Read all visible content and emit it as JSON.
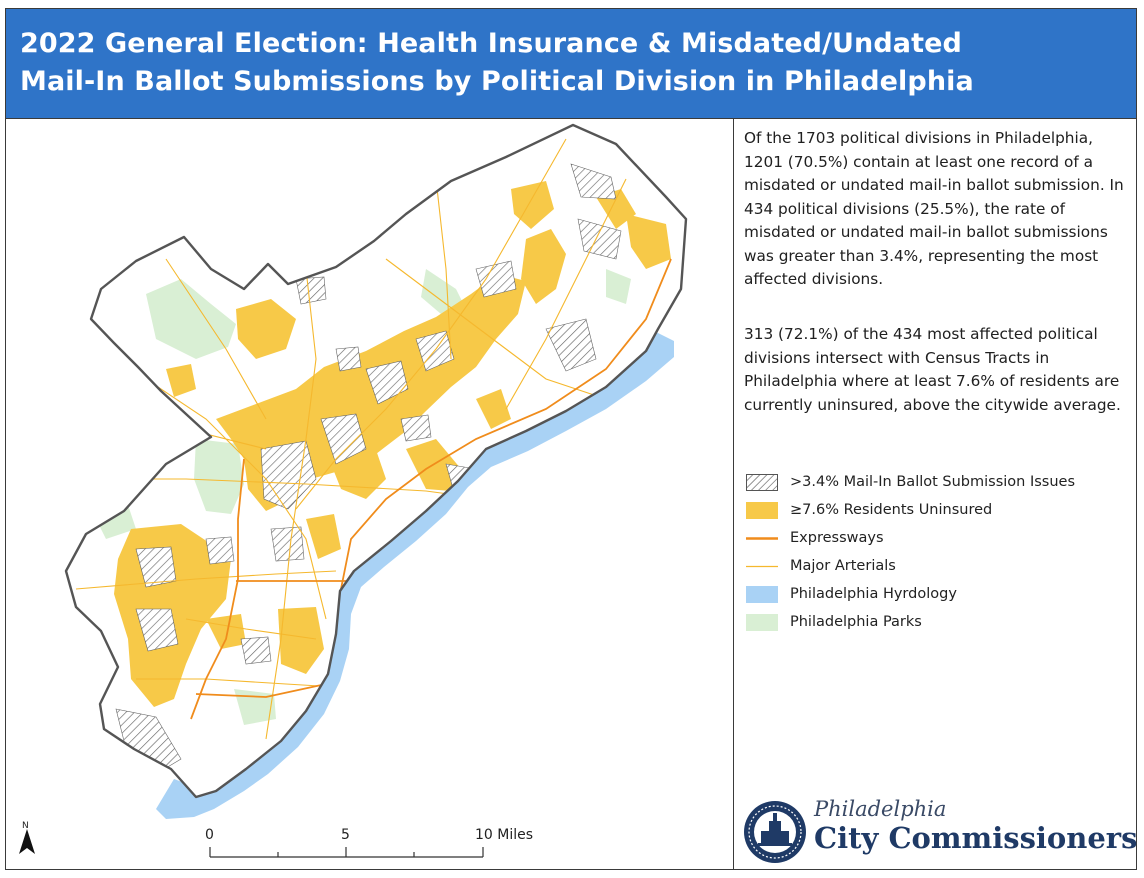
{
  "title": {
    "line1": "2022 General Election: Health Insurance & Misdated/Undated",
    "line2": "Mail-In Ballot Submissions by Political Division in Philadelphia"
  },
  "description": {
    "paragraph1": "Of the 1703 political divisions in Philadelphia, 1201 (70.5%) contain at least one record of a misdated or undated mail-in ballot submission. In 434 political divisions (25.5%), the rate of misdated or undated mail-in ballot submissions was greater than 3.4%, representing the most affected divisions.",
    "paragraph2": "313 (72.1%) of the 434 most affected political divisions intersect with Census Tracts in Philadelphia where at least 7.6% of residents are currently uninsured, above the citywide average."
  },
  "legend": [
    {
      "label": ">3.4% Mail-In Ballot Submission Issues",
      "swatch": "hatch",
      "color": "#555555"
    },
    {
      "label": "≥7.6% Residents Uninsured",
      "swatch": "fill",
      "color": "#f7c948"
    },
    {
      "label": "Expressways",
      "swatch": "line",
      "color": "#f08c1c"
    },
    {
      "label": "Major Arterials",
      "swatch": "line-thin",
      "color": "#f5b82e"
    },
    {
      "label": "Philadelphia Hyrdology",
      "swatch": "fill",
      "color": "#a9d2f5"
    },
    {
      "label": "Philadelphia Parks",
      "swatch": "fill",
      "color": "#d9efd4"
    }
  ],
  "scale_bar": {
    "labels": [
      "0",
      "5",
      "10 Miles"
    ]
  },
  "north_arrow": {
    "label": "N",
    "icon": "north-arrow-icon"
  },
  "brand": {
    "line1": "Philadelphia",
    "line2": "City Commissioners",
    "icon": "city-hall-seal-icon"
  },
  "colors": {
    "header": "#2f74c8",
    "uninsured": "#f7c948",
    "water": "#a9d2f5",
    "parks": "#d9efd4",
    "expressway": "#f08c1c",
    "arterial": "#f5b82e",
    "boundary": "#555555"
  }
}
